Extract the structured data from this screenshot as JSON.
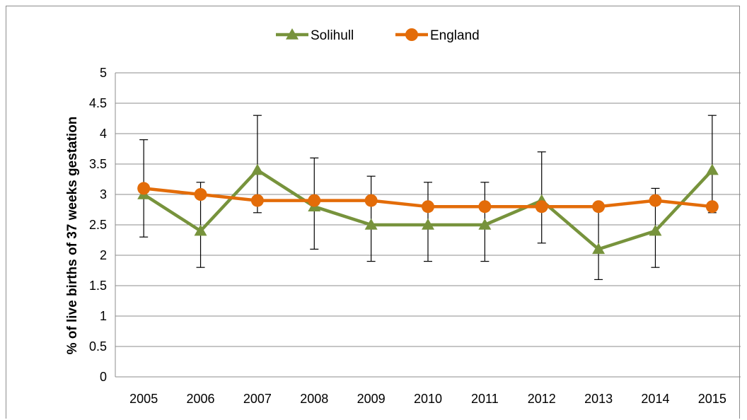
{
  "chart_data": {
    "type": "line",
    "title": "",
    "xlabel": "",
    "ylabel": "% of live births of 37 weeks gestation",
    "categories": [
      "2005",
      "2006",
      "2007",
      "2008",
      "2009",
      "2010",
      "2011",
      "2012",
      "2013",
      "2014",
      "2015"
    ],
    "ylim": [
      0,
      5
    ],
    "yticks": [
      "0",
      "0.5",
      "1",
      "1.5",
      "2",
      "2.5",
      "3",
      "3.5",
      "4",
      "4.5",
      "5"
    ],
    "grid": true,
    "legend": "top-center",
    "series": [
      {
        "name": "Solihull",
        "color": "#77933c",
        "marker": "triangle",
        "values": [
          3.0,
          2.4,
          3.4,
          2.8,
          2.5,
          2.5,
          2.5,
          2.9,
          2.1,
          2.4,
          3.4
        ],
        "error_low": [
          2.3,
          1.8,
          2.7,
          2.1,
          1.9,
          1.9,
          1.9,
          2.2,
          1.6,
          1.8,
          2.7
        ],
        "error_high": [
          3.9,
          3.2,
          4.3,
          3.6,
          3.3,
          3.2,
          3.2,
          3.7,
          2.8,
          3.1,
          4.3
        ]
      },
      {
        "name": "England",
        "color": "#e36c09",
        "marker": "circle",
        "values": [
          3.1,
          3.0,
          2.9,
          2.9,
          2.9,
          2.8,
          2.8,
          2.8,
          2.8,
          2.9,
          2.8
        ]
      }
    ]
  }
}
